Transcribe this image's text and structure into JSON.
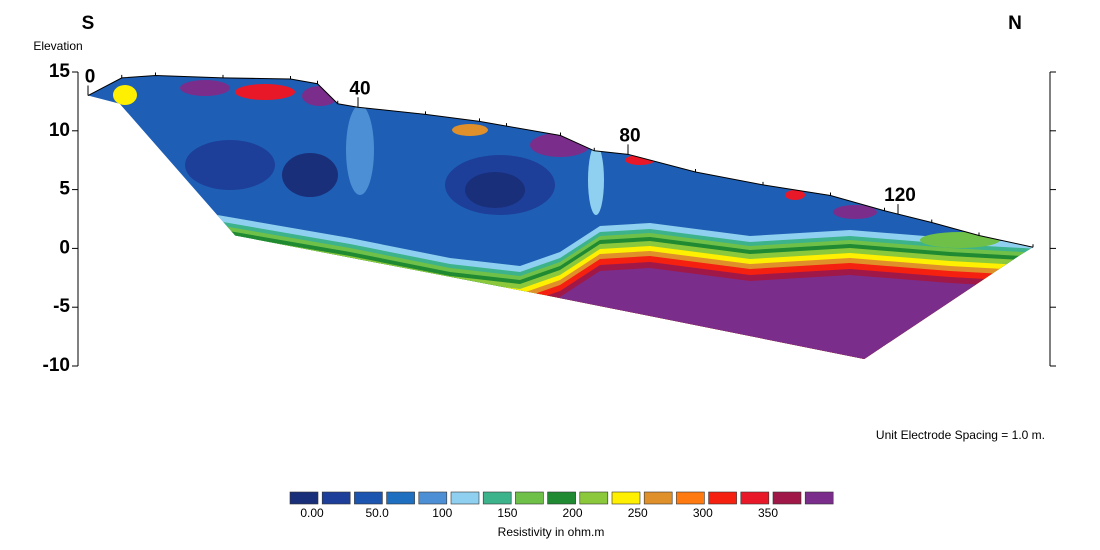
{
  "chart_data": {
    "type": "section",
    "left_label": "S",
    "right_label": "N",
    "ylabel": "Elevation",
    "ylim": [
      -10,
      15
    ],
    "yticks": [
      15,
      10,
      5,
      0,
      -5,
      -10
    ],
    "xlim": [
      0,
      140
    ],
    "xticks": [
      0,
      40,
      80,
      120
    ],
    "surface": {
      "x": [
        0,
        5,
        10,
        20,
        30,
        34,
        37,
        40,
        50,
        58,
        62,
        70,
        75,
        80,
        90,
        100,
        110,
        118,
        125,
        132,
        140
      ],
      "elevation": [
        13,
        14.5,
        14.7,
        14.5,
        14.4,
        14,
        12.3,
        12,
        11.4,
        10.8,
        10.4,
        9.6,
        8.3,
        8,
        6.5,
        5.4,
        4.5,
        3.2,
        2.2,
        1.1,
        0.1
      ]
    },
    "bottom": {
      "x": [
        4.7,
        21.8,
        68,
        115,
        138
      ],
      "elevation": [
        12.3,
        1.1,
        -4,
        -9.4,
        -0.6
      ]
    },
    "note": "Unit Electrode Spacing = 1.0 m.",
    "colorbar": {
      "colors": [
        "#1a2f7a",
        "#1d3f99",
        "#1b55b0",
        "#1e6fc0",
        "#4d8fd4",
        "#8fd0f0",
        "#3cb38a",
        "#6fc048",
        "#1f8a32",
        "#8cc83c",
        "#ffef00",
        "#e0902a",
        "#ff7a10",
        "#f52010",
        "#e81828",
        "#a01848",
        "#7b2d8c"
      ],
      "ticks": [
        {
          "value": 0,
          "label": "0.00"
        },
        {
          "value": 50,
          "label": "50.0"
        },
        100,
        150,
        200,
        250,
        300,
        350
      ],
      "label": "Resistivity in ohm.m"
    }
  }
}
